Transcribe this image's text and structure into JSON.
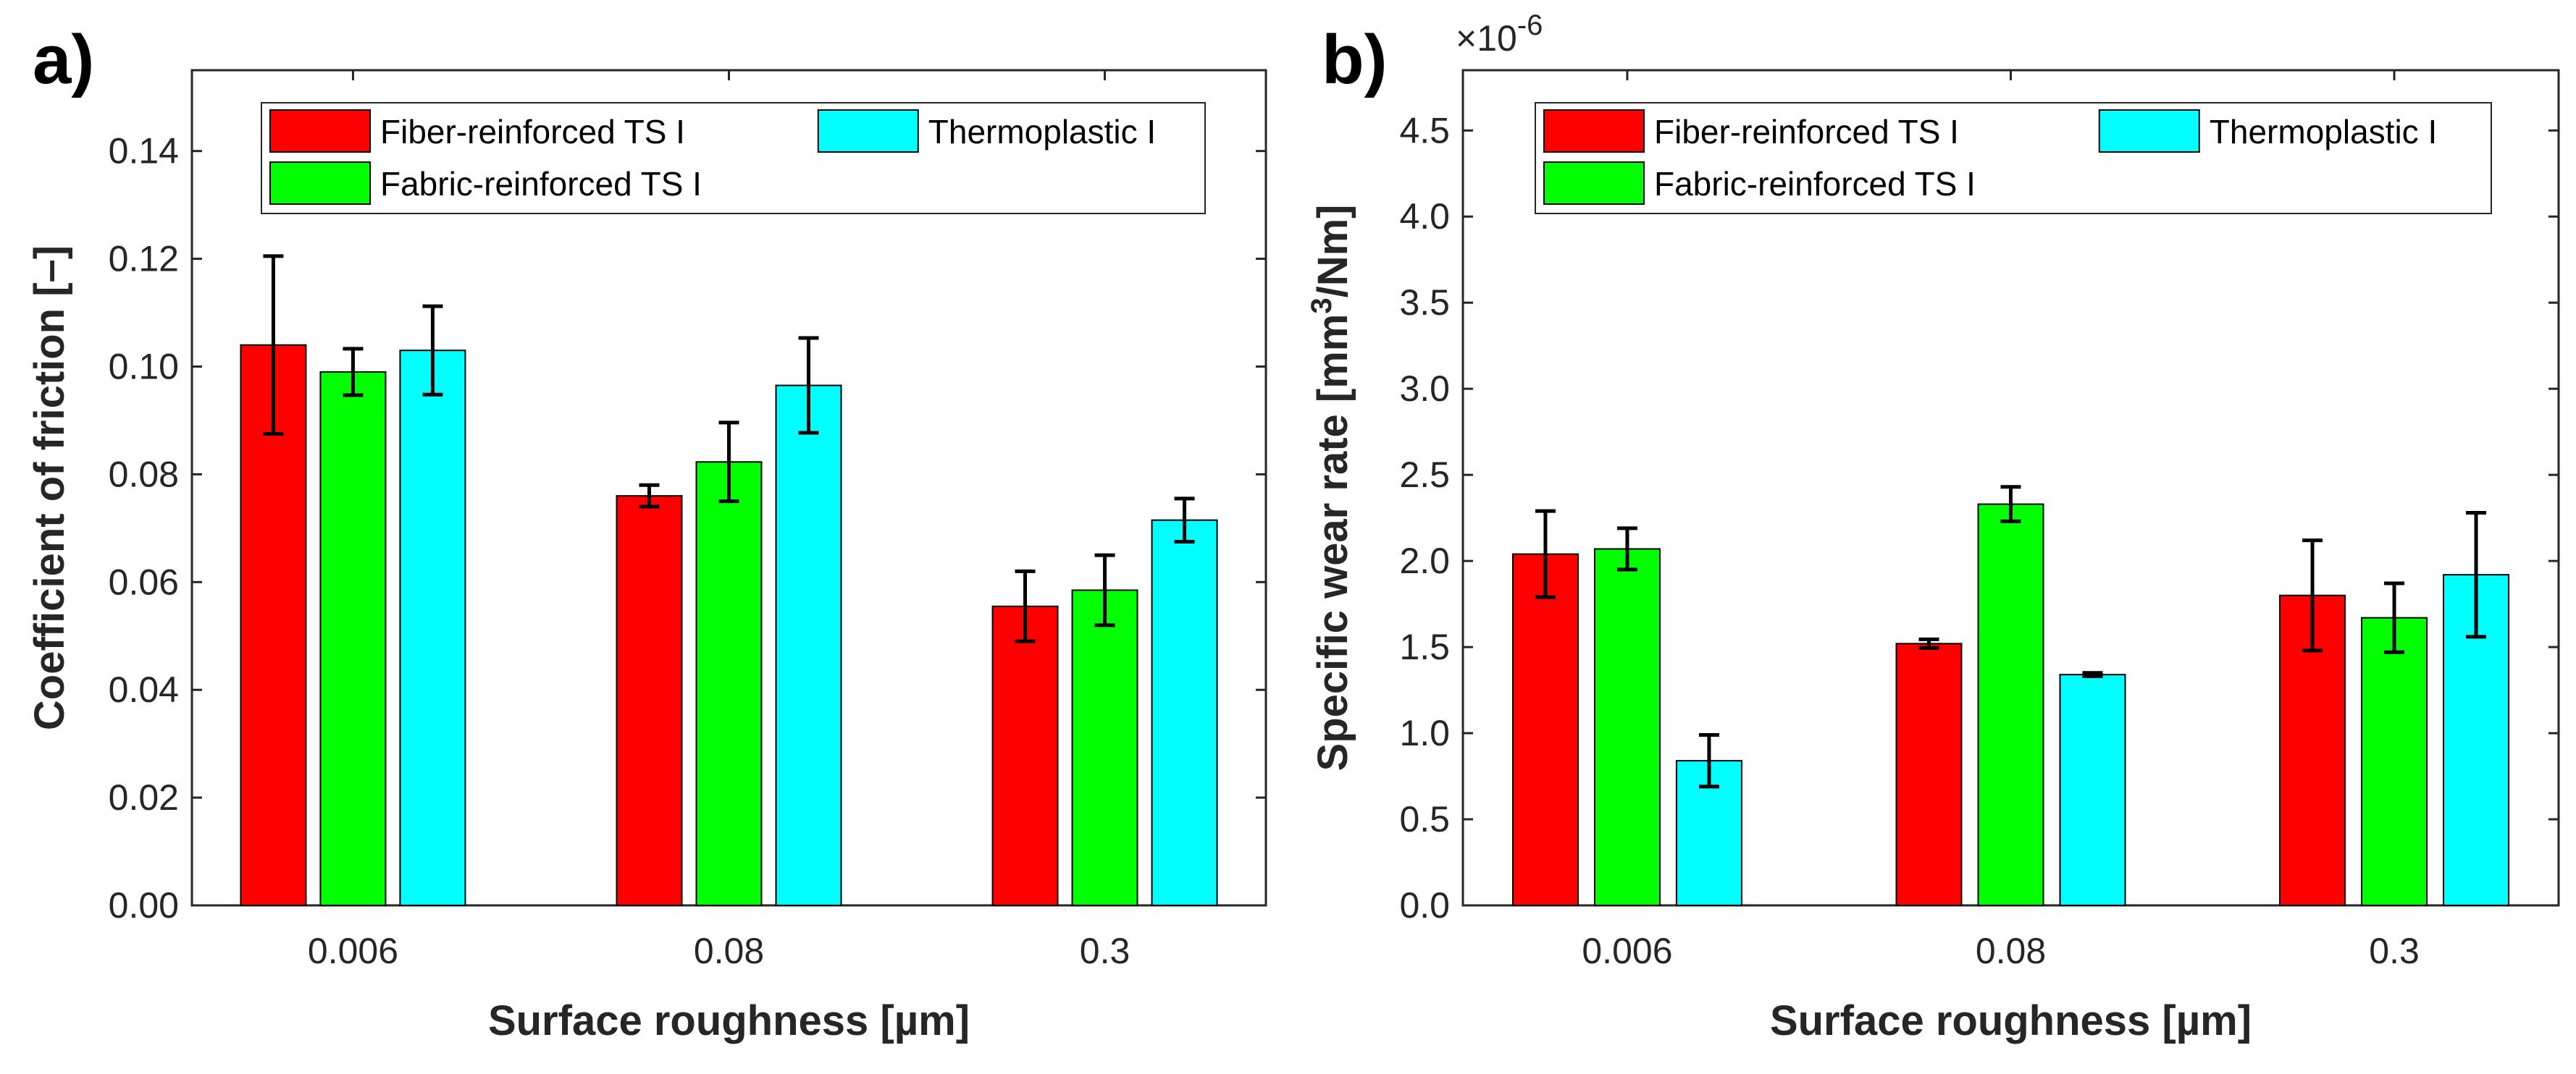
{
  "chart_data": [
    {
      "type": "bar",
      "panel_label": "a)",
      "categories": [
        "0.006",
        "0.08",
        "0.3"
      ],
      "xlabel": "Surface roughness [µm]",
      "ylabel": "Coefficient of friction [–]",
      "ylim": [
        0,
        0.155
      ],
      "yticks": [
        "0.00",
        "0.02",
        "0.04",
        "0.06",
        "0.08",
        "0.10",
        "0.12",
        "0.14"
      ],
      "ytick_values": [
        0,
        0.02,
        0.04,
        0.06,
        0.08,
        0.1,
        0.12,
        0.14
      ],
      "legend_position": "top",
      "series": [
        {
          "name": "Fiber-reinforced TS I",
          "color": "#ff0000",
          "values": [
            0.104,
            0.076,
            0.0555
          ],
          "errors": [
            0.0165,
            0.002,
            0.0065
          ]
        },
        {
          "name": "Fabric-reinforced TS I",
          "color": "#00ff00",
          "values": [
            0.099,
            0.0823,
            0.0585
          ],
          "errors": [
            0.0043,
            0.0073,
            0.0065
          ]
        },
        {
          "name": "Thermoplastic I",
          "color": "#00ffff",
          "values": [
            0.103,
            0.0965,
            0.0715
          ],
          "errors": [
            0.0082,
            0.0088,
            0.004
          ]
        }
      ]
    },
    {
      "type": "bar",
      "panel_label": "b)",
      "categories": [
        "0.006",
        "0.08",
        "0.3"
      ],
      "xlabel": "Surface roughness [µm]",
      "ylabel_main": "Specific wear rate [mm",
      "ylabel_sup": "3",
      "ylabel_tail": "/Nm]",
      "exponent_base": "×10",
      "exponent_power": "-6",
      "ylim": [
        0,
        4.85
      ],
      "yticks": [
        "0.0",
        "0.5",
        "1.0",
        "1.5",
        "2.0",
        "2.5",
        "3.0",
        "3.5",
        "4.0",
        "4.5"
      ],
      "ytick_values": [
        0,
        0.5,
        1.0,
        1.5,
        2.0,
        2.5,
        3.0,
        3.5,
        4.0,
        4.5
      ],
      "legend_position": "top",
      "series": [
        {
          "name": "Fiber-reinforced TS I",
          "color": "#ff0000",
          "values": [
            2.04,
            1.52,
            1.8
          ],
          "errors": [
            0.25,
            0.025,
            0.32
          ]
        },
        {
          "name": "Fabric-reinforced TS I",
          "color": "#00ff00",
          "values": [
            2.07,
            2.33,
            1.67
          ],
          "errors": [
            0.12,
            0.1,
            0.2
          ]
        },
        {
          "name": "Thermoplastic I",
          "color": "#00ffff",
          "values": [
            0.84,
            1.34,
            1.92
          ],
          "errors": [
            0.15,
            0.01,
            0.36
          ]
        }
      ]
    }
  ]
}
